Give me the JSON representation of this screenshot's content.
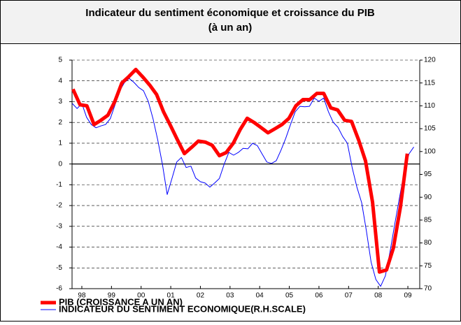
{
  "chart_data": {
    "type": "line",
    "title": [
      "Indicateur du sentiment économique et croissance du PIB",
      "(à un an)"
    ],
    "xlim": [
      1998.17,
      2009.9
    ],
    "xticks": [
      {
        "value": 1998.5,
        "label": "98"
      },
      {
        "value": 1999.5,
        "label": "99"
      },
      {
        "value": 2000.5,
        "label": "00"
      },
      {
        "value": 2001.5,
        "label": "01"
      },
      {
        "value": 2002.5,
        "label": "02"
      },
      {
        "value": 2003.5,
        "label": "03"
      },
      {
        "value": 2004.5,
        "label": "04"
      },
      {
        "value": 2005.5,
        "label": "05"
      },
      {
        "value": 2006.5,
        "label": "06"
      },
      {
        "value": 2007.5,
        "label": "07"
      },
      {
        "value": 2008.5,
        "label": "08"
      },
      {
        "value": 2009.5,
        "label": "09"
      }
    ],
    "ylim": [
      -6,
      5
    ],
    "yticks": [
      -6,
      -5,
      -4,
      -3,
      -2,
      -1,
      0,
      1,
      2,
      3,
      4,
      5
    ],
    "y2lim": [
      70,
      120
    ],
    "y2ticks": [
      70,
      75,
      80,
      85,
      90,
      95,
      100,
      105,
      110,
      115,
      120
    ],
    "grid": true,
    "series": [
      {
        "name": "PIB (CROISSANCE A UN AN)",
        "color": "#ff0000",
        "x": [
          1998.2,
          1998.44,
          1998.67,
          1998.91,
          1999.14,
          1999.38,
          1999.61,
          1999.85,
          2000.08,
          2000.32,
          2000.55,
          2000.79,
          2001.02,
          2001.26,
          2001.49,
          2001.73,
          2001.96,
          2002.2,
          2002.43,
          2002.67,
          2002.9,
          2003.14,
          2003.37,
          2003.61,
          2003.84,
          2004.08,
          2004.31,
          2004.55,
          2004.78,
          2005.02,
          2005.25,
          2005.49,
          2005.72,
          2005.96,
          2006.19,
          2006.43,
          2006.66,
          2006.9,
          2007.13,
          2007.37,
          2007.6,
          2007.84,
          2008.07,
          2008.31,
          2008.54,
          2008.78,
          2009.01,
          2009.25,
          2009.48
        ],
        "values": [
          3.6,
          2.85,
          2.8,
          1.9,
          2.1,
          2.35,
          3.0,
          3.9,
          4.2,
          4.55,
          4.2,
          3.8,
          3.35,
          2.5,
          1.85,
          1.15,
          0.5,
          0.8,
          1.1,
          1.05,
          0.9,
          0.4,
          0.55,
          1.0,
          1.65,
          2.2,
          2.0,
          1.75,
          1.5,
          1.7,
          1.9,
          2.2,
          2.8,
          3.1,
          3.1,
          3.4,
          3.4,
          2.7,
          2.6,
          2.1,
          2.05,
          1.15,
          0.15,
          -1.85,
          -5.2,
          -5.1,
          -4.05,
          -2.05,
          0.5
        ]
      },
      {
        "name": "INDICATEUR DU SENTIMENT ECONOMIQUE(R.H.SCALE)",
        "color": "#0000ff",
        "axis": "y2",
        "x": [
          1998.18,
          1998.34,
          1998.5,
          1998.66,
          1998.82,
          1998.98,
          1999.14,
          1999.3,
          1999.46,
          1999.62,
          1999.78,
          1999.94,
          2000.1,
          2000.26,
          2000.42,
          2000.58,
          2000.74,
          2000.9,
          2001.06,
          2001.22,
          2001.38,
          2001.54,
          2001.7,
          2001.86,
          2002.02,
          2002.18,
          2002.34,
          2002.5,
          2002.66,
          2002.82,
          2002.98,
          2003.14,
          2003.3,
          2003.46,
          2003.62,
          2003.78,
          2003.94,
          2004.1,
          2004.26,
          2004.42,
          2004.58,
          2004.74,
          2004.9,
          2005.06,
          2005.22,
          2005.38,
          2005.54,
          2005.7,
          2005.86,
          2006.02,
          2006.18,
          2006.34,
          2006.5,
          2006.66,
          2006.82,
          2006.98,
          2007.14,
          2007.3,
          2007.46,
          2007.62,
          2007.78,
          2007.94,
          2008.1,
          2008.26,
          2008.42,
          2008.58,
          2008.74,
          2008.9,
          2009.06,
          2009.22,
          2009.38,
          2009.54,
          2009.7
        ],
        "values": [
          110.5,
          109.4,
          110.5,
          107.5,
          105.9,
          105.2,
          105.6,
          105.9,
          107.2,
          110.2,
          113.3,
          115.1,
          116,
          115.1,
          114,
          113.3,
          111,
          107.2,
          102.6,
          97.2,
          90.6,
          94.1,
          97.7,
          98.7,
          96.5,
          96.8,
          94.2,
          93.4,
          93.1,
          92.2,
          93.1,
          94.1,
          97.2,
          99.8,
          99.2,
          99.8,
          100.7,
          100.6,
          101.8,
          101.3,
          99.5,
          97.7,
          97.4,
          98,
          100.3,
          102.9,
          105.9,
          108.7,
          109.9,
          109.8,
          109.9,
          111.7,
          111,
          111.7,
          108.7,
          106.4,
          105.3,
          103.3,
          101.8,
          96.5,
          92.2,
          88.8,
          82.7,
          75.8,
          72,
          70.5,
          72.8,
          78.1,
          84.2,
          90,
          95.7,
          99.5,
          101
        ]
      }
    ]
  }
}
